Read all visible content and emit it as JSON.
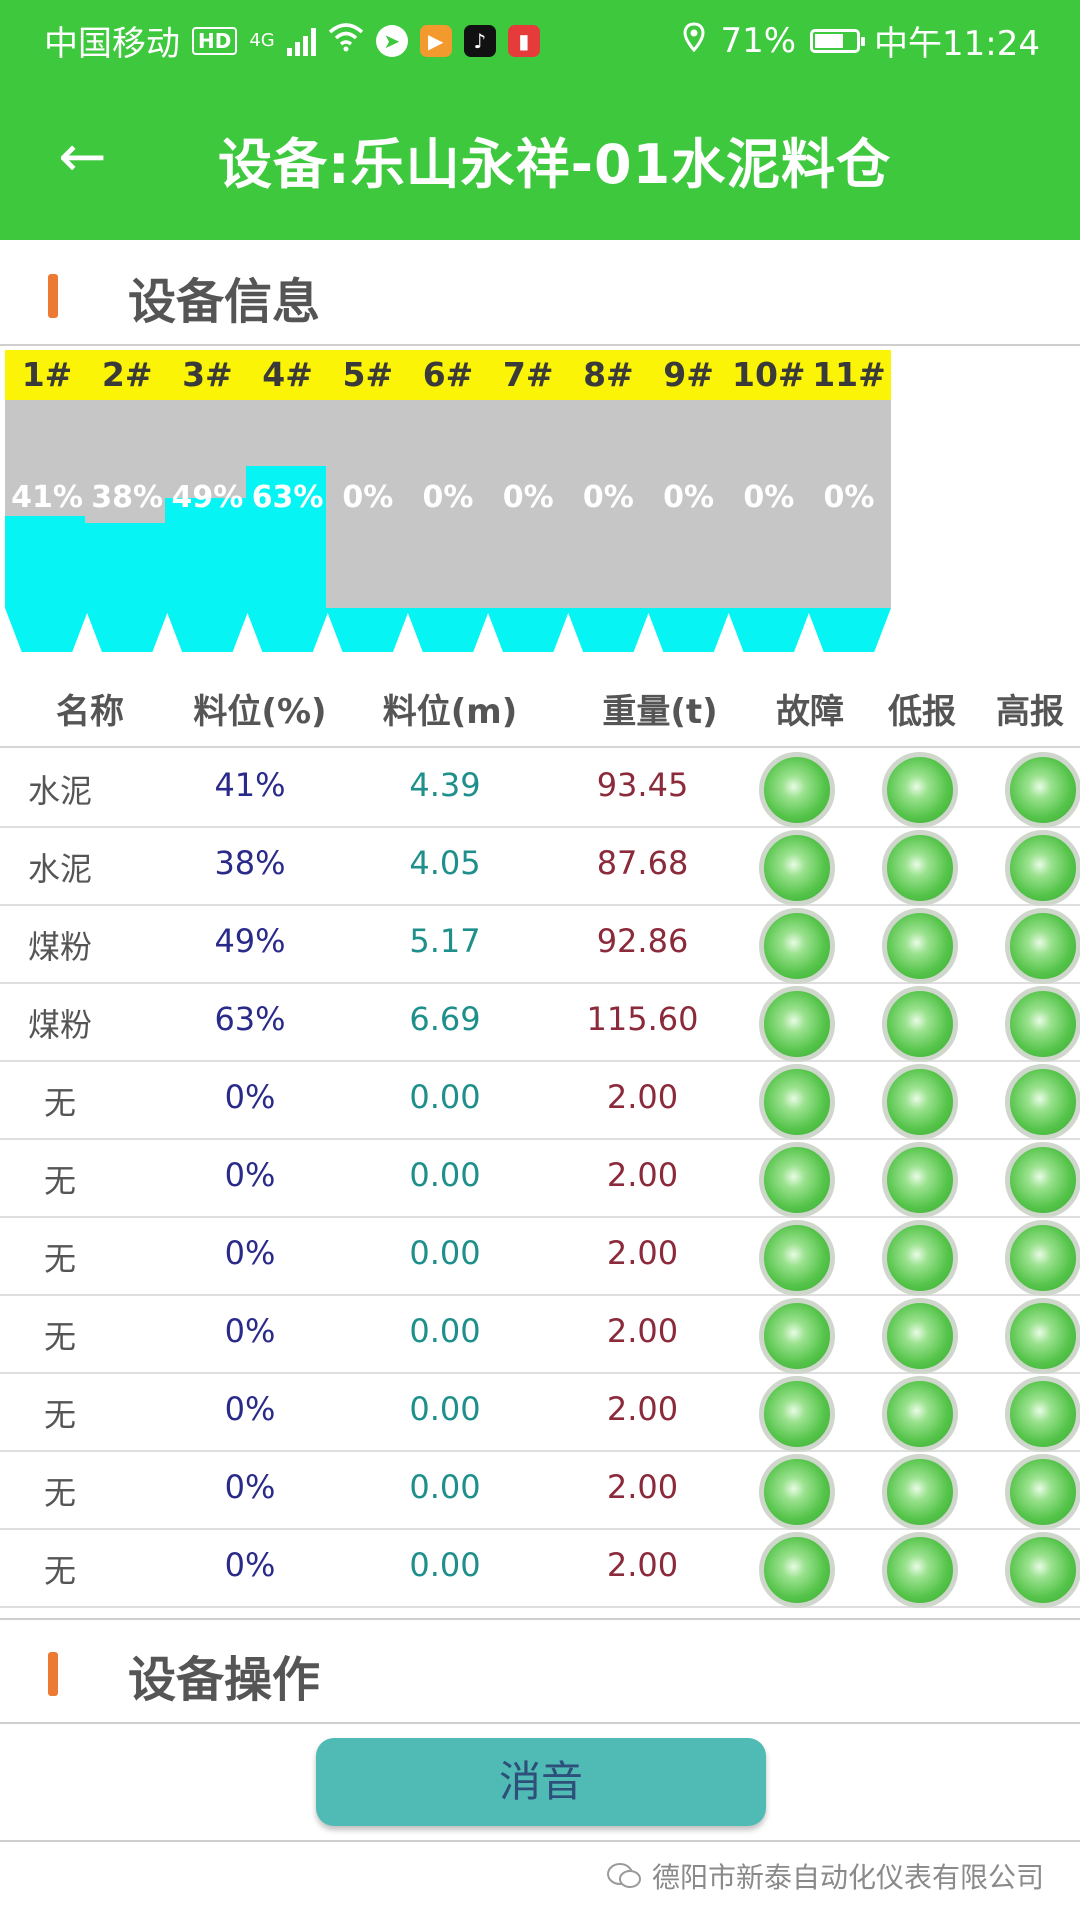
{
  "status_bar": {
    "carrier": "中国移动",
    "hd": "HD",
    "network": "4G",
    "battery_percent": "71%",
    "battery_level": 0.71,
    "time": "中午11:24"
  },
  "header": {
    "title": "设备:乐山永祥-01水泥料仓"
  },
  "sections": {
    "info_title": "设备信息",
    "ops_title": "设备操作"
  },
  "bins": [
    {
      "label": "1#",
      "pct": "41%",
      "level": 41
    },
    {
      "label": "2#",
      "pct": "38%",
      "level": 38
    },
    {
      "label": "3#",
      "pct": "49%",
      "level": 49
    },
    {
      "label": "4#",
      "pct": "63%",
      "level": 63
    },
    {
      "label": "5#",
      "pct": "0%",
      "level": 0
    },
    {
      "label": "6#",
      "pct": "0%",
      "level": 0
    },
    {
      "label": "7#",
      "pct": "0%",
      "level": 0
    },
    {
      "label": "8#",
      "pct": "0%",
      "level": 0
    },
    {
      "label": "9#",
      "pct": "0%",
      "level": 0
    },
    {
      "label": "10#",
      "pct": "0%",
      "level": 0
    },
    {
      "label": "11#",
      "pct": "0%",
      "level": 0
    }
  ],
  "table": {
    "headers": [
      "名称",
      "料位(%)",
      "料位(m)",
      "重量(t)",
      "故障",
      "低报",
      "高报"
    ],
    "rows": [
      {
        "name": "水泥",
        "pct": "41%",
        "m": "4.39",
        "w": "93.45"
      },
      {
        "name": "水泥",
        "pct": "38%",
        "m": "4.05",
        "w": "87.68"
      },
      {
        "name": "煤粉",
        "pct": "49%",
        "m": "5.17",
        "w": "92.86"
      },
      {
        "name": "煤粉",
        "pct": "63%",
        "m": "6.69",
        "w": "115.60"
      },
      {
        "name": "无",
        "pct": "0%",
        "m": "0.00",
        "w": "2.00"
      },
      {
        "name": "无",
        "pct": "0%",
        "m": "0.00",
        "w": "2.00"
      },
      {
        "name": "无",
        "pct": "0%",
        "m": "0.00",
        "w": "2.00"
      },
      {
        "name": "无",
        "pct": "0%",
        "m": "0.00",
        "w": "2.00"
      },
      {
        "name": "无",
        "pct": "0%",
        "m": "0.00",
        "w": "2.00"
      },
      {
        "name": "无",
        "pct": "0%",
        "m": "0.00",
        "w": "2.00"
      },
      {
        "name": "无",
        "pct": "0%",
        "m": "0.00",
        "w": "2.00"
      }
    ]
  },
  "actions": {
    "mute_label": "消音"
  },
  "watermark": {
    "text": "德阳市新泰自动化仪表有限公司"
  },
  "colors": {
    "brand_green": "#3dc83d",
    "bin_label_yellow": "#fbf406",
    "bin_fill_cyan": "#07f4f4",
    "bin_empty_gray": "#c6c6c6",
    "indicator_green": "#55c44a",
    "button_teal": "#4fbbb4",
    "section_accent": "#ec7a35"
  }
}
